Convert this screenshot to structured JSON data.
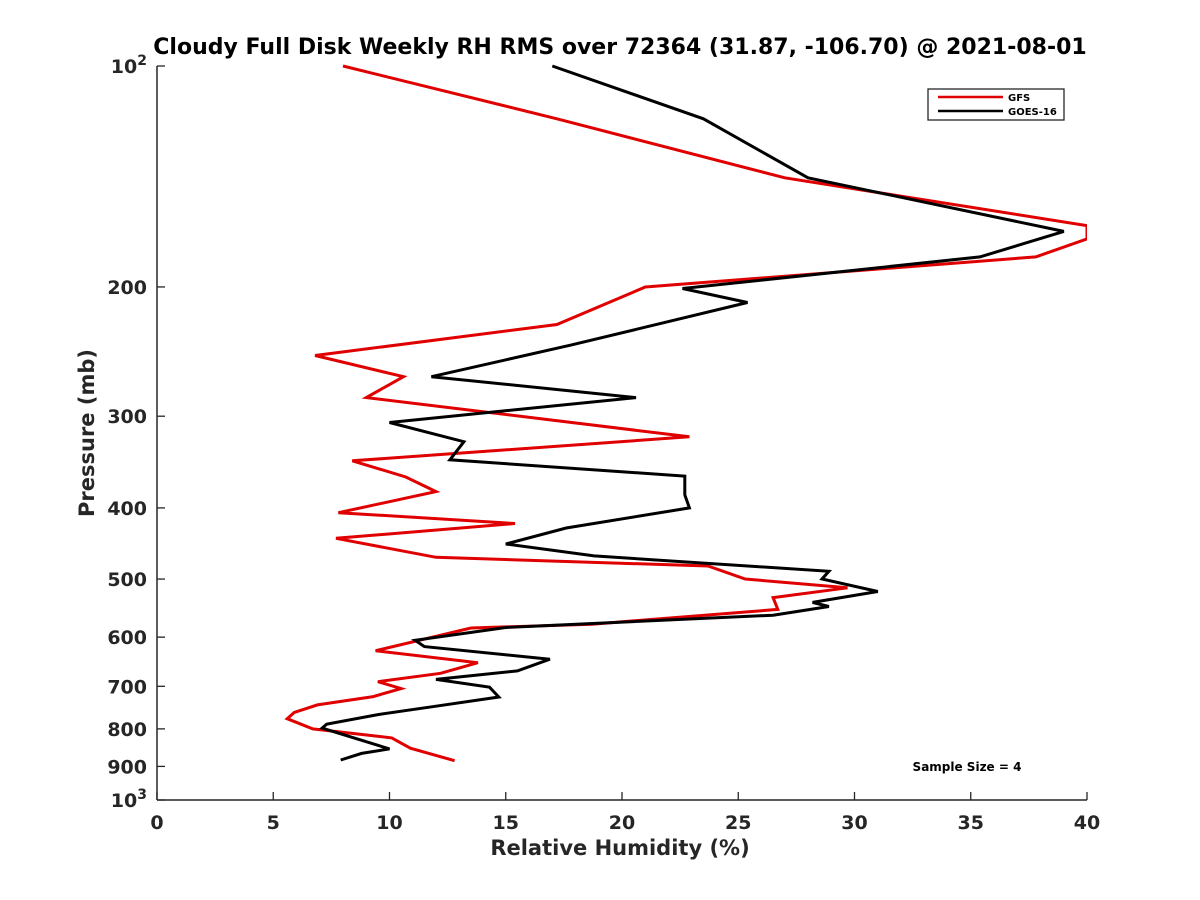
{
  "chart_data": {
    "type": "line",
    "title": "Cloudy Full Disk Weekly RH RMS over 72364 (31.87, -106.70) @ 2021-08-01",
    "xlabel": "Relative Humidity (%)",
    "ylabel": "Pressure (mb)",
    "xlim": [
      0,
      40
    ],
    "ylim": [
      100,
      1000
    ],
    "y_scale": "log",
    "y_reversed": true,
    "grid": false,
    "legend_position": "top-right",
    "x_ticks": [
      "0",
      "5",
      "10",
      "15",
      "20",
      "25",
      "30",
      "35",
      "40"
    ],
    "y_ticks": [
      {
        "value": 100,
        "label": "10",
        "exp": "2"
      },
      {
        "value": 200,
        "label": "200"
      },
      {
        "value": 300,
        "label": "300"
      },
      {
        "value": 400,
        "label": "400"
      },
      {
        "value": 500,
        "label": "500"
      },
      {
        "value": 600,
        "label": "600"
      },
      {
        "value": 700,
        "label": "700"
      },
      {
        "value": 800,
        "label": "800"
      },
      {
        "value": 900,
        "label": "900"
      },
      {
        "value": 1000,
        "label": "10",
        "exp": "3"
      }
    ],
    "annotation": "Sample Size = 4",
    "series": [
      {
        "name": "GFS",
        "color": "#e00000",
        "points": [
          [
            8.0,
            100
          ],
          [
            17.2,
            118
          ],
          [
            27.0,
            142
          ],
          [
            40.0,
            165
          ],
          [
            40.0,
            172
          ],
          [
            37.8,
            182
          ],
          [
            21.0,
            200
          ],
          [
            17.2,
            225
          ],
          [
            6.8,
            248
          ],
          [
            10.6,
            265
          ],
          [
            9.0,
            283
          ],
          [
            22.9,
            320
          ],
          [
            8.4,
            345
          ],
          [
            10.7,
            363
          ],
          [
            12.0,
            380
          ],
          [
            7.8,
            406
          ],
          [
            15.4,
            420
          ],
          [
            7.7,
            440
          ],
          [
            12.0,
            467
          ],
          [
            23.7,
            480
          ],
          [
            25.3,
            500
          ],
          [
            29.7,
            514
          ],
          [
            26.5,
            530
          ],
          [
            26.7,
            550
          ],
          [
            18.7,
            576
          ],
          [
            13.5,
            583
          ],
          [
            9.4,
            626
          ],
          [
            13.8,
            650
          ],
          [
            12.2,
            672
          ],
          [
            9.5,
            690
          ],
          [
            10.5,
            705
          ],
          [
            9.3,
            723
          ],
          [
            6.9,
            742
          ],
          [
            5.9,
            760
          ],
          [
            5.6,
            775
          ],
          [
            6.7,
            800
          ],
          [
            10.1,
            823
          ],
          [
            10.9,
            850
          ],
          [
            12.8,
            884
          ]
        ]
      },
      {
        "name": "GOES-16",
        "color": "#000000",
        "points": [
          [
            17.0,
            100
          ],
          [
            23.5,
            118
          ],
          [
            28.0,
            142
          ],
          [
            39.0,
            168
          ],
          [
            35.4,
            182
          ],
          [
            22.6,
            201
          ],
          [
            25.4,
            210
          ],
          [
            17.8,
            240
          ],
          [
            11.8,
            265
          ],
          [
            20.6,
            283
          ],
          [
            10.0,
            306
          ],
          [
            13.2,
            325
          ],
          [
            12.6,
            344
          ],
          [
            22.7,
            362
          ],
          [
            22.7,
            384
          ],
          [
            22.9,
            400
          ],
          [
            17.6,
            426
          ],
          [
            15.0,
            448
          ],
          [
            18.8,
            465
          ],
          [
            28.9,
            488
          ],
          [
            28.6,
            500
          ],
          [
            31.0,
            520
          ],
          [
            28.2,
            538
          ],
          [
            28.9,
            545
          ],
          [
            26.5,
            560
          ],
          [
            15.0,
            582
          ],
          [
            11.1,
            606
          ],
          [
            11.5,
            618
          ],
          [
            16.9,
            643
          ],
          [
            15.5,
            667
          ],
          [
            12.0,
            685
          ],
          [
            14.3,
            702
          ],
          [
            14.7,
            724
          ],
          [
            12.0,
            745
          ],
          [
            9.5,
            765
          ],
          [
            7.3,
            788
          ],
          [
            7.1,
            798
          ],
          [
            10.0,
            852
          ],
          [
            8.8,
            864
          ],
          [
            7.9,
            882
          ]
        ]
      }
    ]
  }
}
